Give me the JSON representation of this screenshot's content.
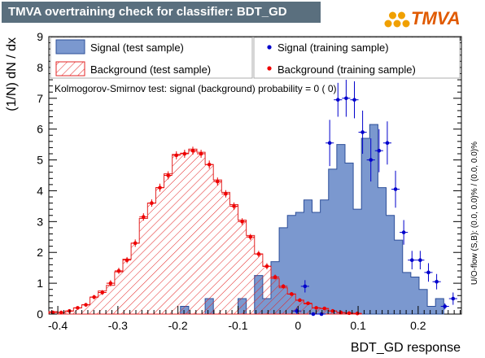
{
  "window": {
    "title": "TMVA overtraining check for classifier: BDT_GD"
  },
  "logo": {
    "text": "TMVA"
  },
  "colors": {
    "signal_fill": "#7b98cf",
    "signal_line": "#2d4f9a",
    "background_line": "#e32424",
    "signal_points": "#0000cc",
    "background_points": "#ee0000",
    "title_bg": "#5a6f7e"
  },
  "chart_data": {
    "type": "histogram",
    "xlabel": "BDT_GD response",
    "ylabel": "(1/N) dN / dx",
    "xlim": [
      -0.415,
      0.272
    ],
    "ylim": [
      0,
      9
    ],
    "x_ticks": [
      "-0.4",
      "-0.3",
      "-0.2",
      "-0.1",
      "0",
      "0.1",
      "0.2"
    ],
    "x_tick_values": [
      -0.4,
      -0.3,
      -0.2,
      -0.1,
      0,
      0.1,
      0.2
    ],
    "y_ticks": [
      "0",
      "1",
      "2",
      "3",
      "4",
      "5",
      "6",
      "7",
      "8",
      "9"
    ],
    "legend": {
      "signal_test": "Signal (test sample)",
      "signal_train": "Signal (training sample)",
      "background_test": "Background (test sample)",
      "background_train": "Background (training sample)"
    },
    "ks_text": "Kolmogorov-Smirnov test: signal (background) probability =     0 (    0)",
    "overflow_text": "U/O-flow (S,B): (0.0, 0.0)% / (0.0, 0.0)%",
    "bin_edges_start": -0.415,
    "bin_width": 0.0137,
    "series": [
      {
        "name": "Signal (test sample)",
        "style": "filled_histogram",
        "values": [
          0,
          0,
          0,
          0,
          0,
          0,
          0,
          0,
          0,
          0,
          0,
          0,
          0,
          0,
          0,
          0,
          0.25,
          0,
          0,
          0.5,
          0,
          0,
          0,
          0.5,
          0,
          1.25,
          0.5,
          1.7,
          2.8,
          3.2,
          3.3,
          3.7,
          3.3,
          3.7,
          4.7,
          5.5,
          4.9,
          3.4,
          5.7,
          6.15,
          4.1,
          3.2,
          2.4,
          1.35,
          1.2,
          0.8,
          0.25,
          0.5
        ]
      },
      {
        "name": "Background (test sample)",
        "style": "hatched_histogram",
        "values": [
          0.08,
          0.06,
          0.1,
          0.2,
          0.3,
          0.55,
          0.75,
          0.93,
          1.37,
          1.78,
          2.3,
          3.1,
          3.6,
          4.1,
          4.55,
          5.18,
          5.22,
          5.35,
          5.25,
          4.85,
          4.35,
          3.95,
          3.55,
          3.05,
          2.55,
          1.95,
          1.55,
          1.15,
          0.85,
          0.65,
          0.45,
          0.33,
          0.2,
          0.18,
          0.1,
          0.05,
          0.03,
          0.02
        ]
      },
      {
        "name": "Signal (training sample)",
        "style": "points",
        "points": [
          {
            "x": -0.0021,
            "y": 0.1,
            "err": 0.1
          },
          {
            "x": 0.0116,
            "y": 0.9,
            "err": 0.2
          },
          {
            "x": 0.0253,
            "y": 0.0,
            "err": 0.0
          },
          {
            "x": 0.039,
            "y": 0.0,
            "err": 0.0
          },
          {
            "x": 0.0527,
            "y": 5.55,
            "err": 0.75
          },
          {
            "x": 0.0664,
            "y": 6.95,
            "err": 0.55
          },
          {
            "x": 0.0801,
            "y": 7.0,
            "err": 0.6
          },
          {
            "x": 0.0938,
            "y": 6.95,
            "err": 0.6
          },
          {
            "x": 0.1075,
            "y": 5.9,
            "err": 0.7
          },
          {
            "x": 0.1212,
            "y": 5.0,
            "err": 0.7
          },
          {
            "x": 0.1349,
            "y": 5.3,
            "err": 0.7
          },
          {
            "x": 0.1486,
            "y": 5.55,
            "err": 0.7
          },
          {
            "x": 0.1623,
            "y": 4.05,
            "err": 0.6
          },
          {
            "x": 0.176,
            "y": 2.65,
            "err": 0.4
          },
          {
            "x": 0.1897,
            "y": 1.75,
            "err": 0.3
          },
          {
            "x": 0.2034,
            "y": 1.75,
            "err": 0.3
          },
          {
            "x": 0.2171,
            "y": 1.35,
            "err": 0.3
          },
          {
            "x": 0.2308,
            "y": 1.05,
            "err": 0.25
          },
          {
            "x": 0.2445,
            "y": 0.25,
            "err": 0.1
          },
          {
            "x": 0.2582,
            "y": 0.5,
            "err": 0.2
          }
        ]
      },
      {
        "name": "Background (training sample)",
        "style": "points",
        "points": [
          {
            "x": -0.4081,
            "y": 0.05,
            "err": 0.03
          },
          {
            "x": -0.3944,
            "y": 0.05,
            "err": 0.03
          },
          {
            "x": -0.3807,
            "y": 0.1,
            "err": 0.04
          },
          {
            "x": -0.367,
            "y": 0.2,
            "err": 0.05
          },
          {
            "x": -0.3533,
            "y": 0.3,
            "err": 0.06
          },
          {
            "x": -0.3396,
            "y": 0.55,
            "err": 0.07
          },
          {
            "x": -0.3259,
            "y": 0.7,
            "err": 0.08
          },
          {
            "x": -0.3122,
            "y": 1.0,
            "err": 0.1
          },
          {
            "x": -0.2985,
            "y": 1.4,
            "err": 0.1
          },
          {
            "x": -0.2848,
            "y": 1.75,
            "err": 0.1
          },
          {
            "x": -0.2711,
            "y": 2.3,
            "err": 0.12
          },
          {
            "x": -0.2574,
            "y": 3.15,
            "err": 0.12
          },
          {
            "x": -0.2437,
            "y": 3.6,
            "err": 0.12
          },
          {
            "x": -0.23,
            "y": 4.1,
            "err": 0.13
          },
          {
            "x": -0.2163,
            "y": 4.5,
            "err": 0.13
          },
          {
            "x": -0.2026,
            "y": 5.15,
            "err": 0.13
          },
          {
            "x": -0.1889,
            "y": 5.2,
            "err": 0.13
          },
          {
            "x": -0.1752,
            "y": 5.3,
            "err": 0.13
          },
          {
            "x": -0.1615,
            "y": 5.2,
            "err": 0.13
          },
          {
            "x": -0.1478,
            "y": 4.85,
            "err": 0.13
          },
          {
            "x": -0.1341,
            "y": 4.3,
            "err": 0.13
          },
          {
            "x": -0.1204,
            "y": 3.9,
            "err": 0.12
          },
          {
            "x": -0.1067,
            "y": 3.5,
            "err": 0.12
          },
          {
            "x": -0.093,
            "y": 3.0,
            "err": 0.11
          },
          {
            "x": -0.0793,
            "y": 2.5,
            "err": 0.1
          },
          {
            "x": -0.0656,
            "y": 1.95,
            "err": 0.1
          },
          {
            "x": -0.0519,
            "y": 1.55,
            "err": 0.1
          },
          {
            "x": -0.0382,
            "y": 1.2,
            "err": 0.08
          },
          {
            "x": -0.0245,
            "y": 0.9,
            "err": 0.07
          },
          {
            "x": -0.0108,
            "y": 0.65,
            "err": 0.06
          },
          {
            "x": 0.0029,
            "y": 0.45,
            "err": 0.05
          },
          {
            "x": 0.0166,
            "y": 0.35,
            "err": 0.04
          },
          {
            "x": 0.0303,
            "y": 0.2,
            "err": 0.03
          },
          {
            "x": 0.044,
            "y": 0.18,
            "err": 0.03
          },
          {
            "x": 0.0577,
            "y": 0.1,
            "err": 0.02
          },
          {
            "x": 0.0714,
            "y": 0.05,
            "err": 0.02
          },
          {
            "x": 0.0851,
            "y": 0.03,
            "err": 0.01
          },
          {
            "x": 0.0988,
            "y": 0.02,
            "err": 0.01
          }
        ]
      }
    ]
  }
}
